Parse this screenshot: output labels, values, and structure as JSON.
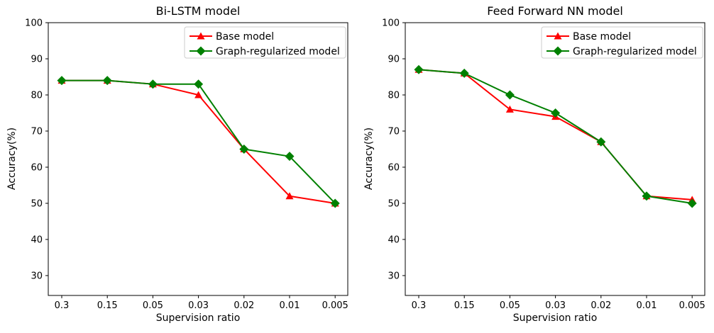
{
  "figure": {
    "background": "#ffffff",
    "axis_color": "#000000",
    "legend_border_color": "#cccccc"
  },
  "chart_data": [
    {
      "type": "line",
      "title": "Bi-LSTM model",
      "xlabel": "Supervision ratio",
      "ylabel": "Accuracy(%)",
      "categories": [
        "0.3",
        "0.15",
        "0.05",
        "0.03",
        "0.02",
        "0.01",
        "0.005"
      ],
      "yticks": [
        30,
        40,
        50,
        60,
        70,
        80,
        90,
        100
      ],
      "ylim": [
        24.5,
        100
      ],
      "grid": false,
      "legend_position": "upper right",
      "series": [
        {
          "name": "Base model",
          "color": "#ff0000",
          "marker": "triangle",
          "values": [
            84,
            84,
            83,
            80,
            65,
            52,
            50
          ]
        },
        {
          "name": "Graph-regularized model",
          "color": "#008000",
          "marker": "diamond",
          "values": [
            84,
            84,
            83,
            83,
            65,
            63,
            50
          ]
        }
      ]
    },
    {
      "type": "line",
      "title": "Feed Forward NN model",
      "xlabel": "Supervision ratio",
      "ylabel": "Accuracy(%)",
      "categories": [
        "0.3",
        "0.15",
        "0.05",
        "0.03",
        "0.02",
        "0.01",
        "0.005"
      ],
      "yticks": [
        30,
        40,
        50,
        60,
        70,
        80,
        90,
        100
      ],
      "ylim": [
        24.5,
        100
      ],
      "grid": false,
      "legend_position": "upper right",
      "series": [
        {
          "name": "Base model",
          "color": "#ff0000",
          "marker": "triangle",
          "values": [
            87,
            86,
            76,
            74,
            67,
            52,
            51
          ]
        },
        {
          "name": "Graph-regularized model",
          "color": "#008000",
          "marker": "diamond",
          "values": [
            87,
            86,
            80,
            75,
            67,
            52,
            50
          ]
        }
      ]
    }
  ]
}
